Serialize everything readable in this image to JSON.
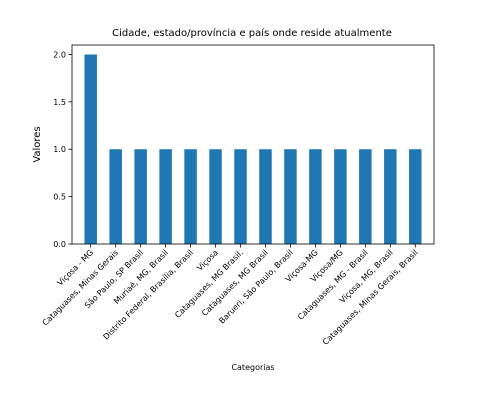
{
  "chart_data": {
    "type": "bar",
    "title": "Cidade, estado/província e país onde reside atualmente",
    "xlabel": "Categorias",
    "ylabel": "Valores",
    "categories": [
      "Viçosa - MG",
      "Cataguases, Minas Gerais",
      "São Paulo, SP Brasil",
      "Muriaé, MG, Brasil",
      "Distrito Federal, Brasília, Brasil",
      "Viçosa",
      "Cataguases, MG Brasil.",
      "Cataguases, MG Brasil",
      "Barueri, São Paulo, Brasil",
      "Viçosa-MG",
      "Viçosa/MG",
      "Cataguases, MG - Brasil",
      "Viçosa, MG, Brasil",
      "Cataguases, Minas Gerais, Brasil"
    ],
    "values": [
      2,
      1,
      1,
      1,
      1,
      1,
      1,
      1,
      1,
      1,
      1,
      1,
      1,
      1
    ],
    "ylim": [
      0,
      2.1
    ],
    "yticks": [
      "0.0",
      "0.5",
      "1.0",
      "1.5",
      "2.0"
    ],
    "grid": false,
    "bar_color": "#1f77b4"
  }
}
